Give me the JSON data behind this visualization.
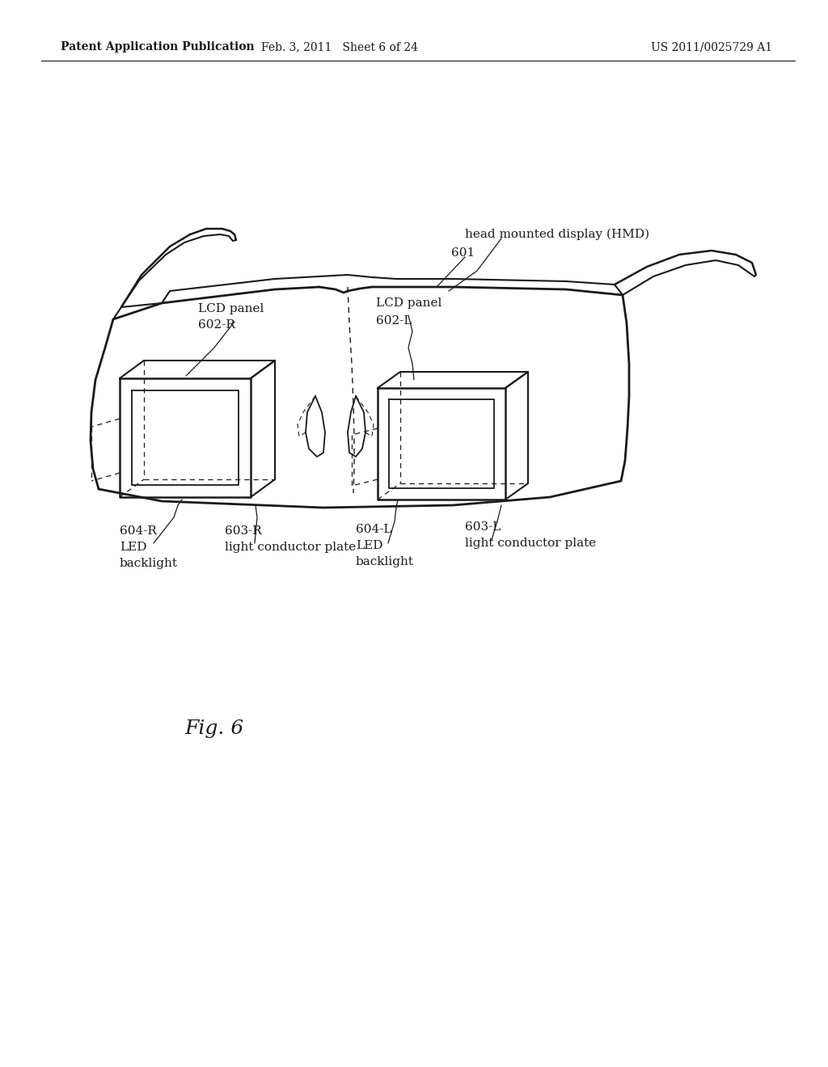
{
  "bg_color": "#ffffff",
  "line_color": "#1a1a1a",
  "header_left": "Patent Application Publication",
  "header_center": "Feb. 3, 2011   Sheet 6 of 24",
  "header_right": "US 2011/0025729 A1",
  "fig_label": "Fig. 6"
}
